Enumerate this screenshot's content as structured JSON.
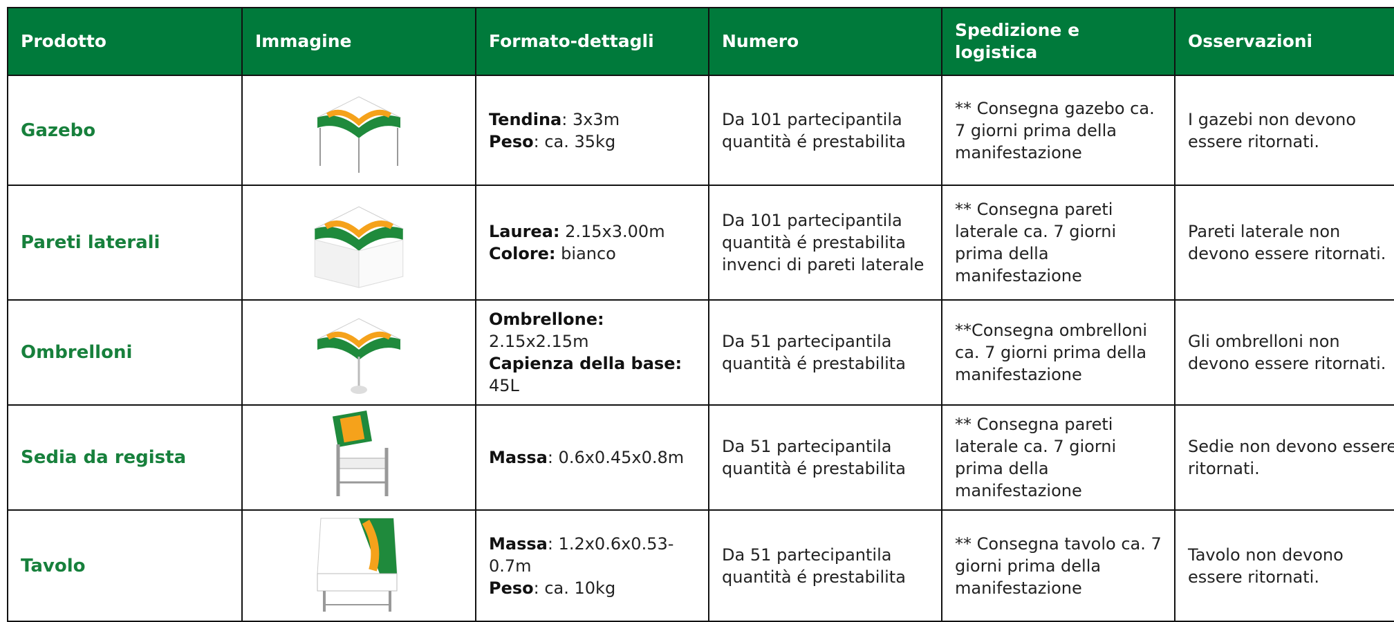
{
  "table": {
    "headers": [
      "Prodotto",
      "Immagine",
      "Formato-dettagli",
      "Numero",
      "Spedizione e logistica",
      "Osservazioni"
    ],
    "rows": [
      {
        "product": "Gazebo",
        "details": [
          [
            {
              "bold": "Tendina"
            },
            {
              "text": ": 3x3m"
            }
          ],
          [
            {
              "bold": "Peso"
            },
            {
              "text": ": ca. 35kg"
            }
          ]
        ],
        "number": "Da 101 partecipantila quantità é prestabilita",
        "shipping": "** Consegna gazebo ca. 7 giorni prima della manifestazione",
        "notes": "I gazebi non devono essere ritornati."
      },
      {
        "product": "Pareti laterali",
        "details": [
          [
            {
              "bold": "Laurea:"
            },
            {
              "text": " 2.15x3.00m"
            }
          ],
          [
            {
              "bold": "Colore:"
            },
            {
              "text": " bianco"
            }
          ]
        ],
        "number": "Da 101 partecipantila quantità é prestabilita invenci di pareti laterale",
        "shipping": "** Consegna pareti laterale ca. 7 giorni prima della manifestazione",
        "notes": "Pareti laterale non devono essere ritornati."
      },
      {
        "product": "Ombrelloni",
        "details": [
          [
            {
              "bold": "Ombrellone:"
            }
          ],
          [
            {
              "text": "2.15x2.15m"
            }
          ],
          [
            {
              "bold": "Capienza della base:"
            }
          ],
          [
            {
              "text": "45L"
            }
          ]
        ],
        "number": "Da 51 partecipantila quantità é prestabilita",
        "shipping": "**Consegna ombrelloni ca. 7 giorni prima della manifestazione",
        "notes": "Gli ombrelloni non devono essere ritornati."
      },
      {
        "product": "Sedia da regista",
        "details": [
          [
            {
              "bold": "Massa"
            },
            {
              "text": ": 0.6x0.45x0.8m"
            }
          ]
        ],
        "number": "Da 51 partecipantila quantità é prestabilita",
        "shipping": "** Consegna pareti laterale ca. 7 giorni prima della manifestazione",
        "notes": "Sedie non devono essere ritornati."
      },
      {
        "product": "Tavolo",
        "details": [
          [
            {
              "bold": "Massa"
            },
            {
              "text": ": 1.2x0.6x0.53-0.7m"
            }
          ],
          [
            {
              "bold": "Peso"
            },
            {
              "text": ": ca. 10kg"
            }
          ]
        ],
        "number": "Da 51 partecipantila quantità é prestabilita",
        "shipping": "** Consegna tavolo ca. 7 giorni prima della manifestazione",
        "notes": "Tavolo non devono essere ritornati."
      }
    ]
  }
}
